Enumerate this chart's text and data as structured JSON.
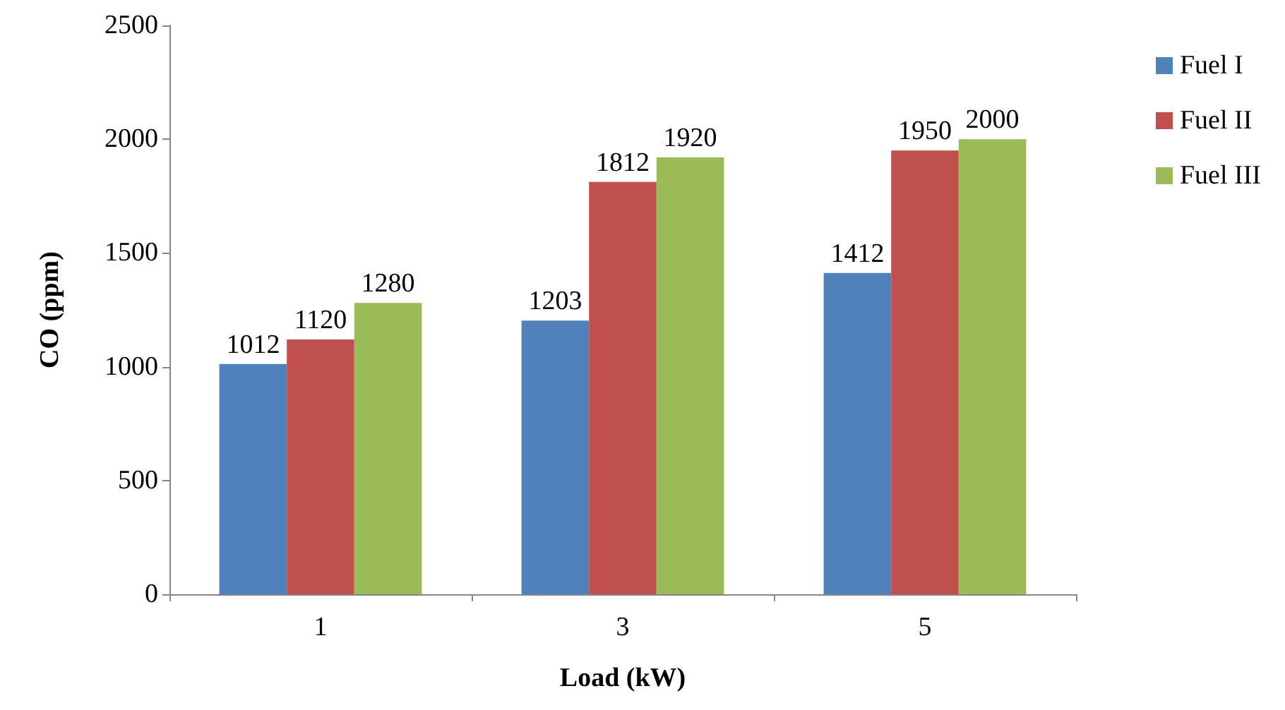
{
  "chart_data": {
    "type": "bar",
    "xlabel": "Load (kW)",
    "ylabel": "CO (ppm)",
    "categories": [
      "1",
      "3",
      "5"
    ],
    "series": [
      {
        "name": "Fuel I",
        "color": "#4f81bd",
        "values": [
          1012,
          1203,
          1412
        ]
      },
      {
        "name": "Fuel II",
        "color": "#c0504d",
        "values": [
          1120,
          1812,
          1950
        ]
      },
      {
        "name": "Fuel III",
        "color": "#9bbb59",
        "values": [
          1280,
          1920,
          2000
        ]
      }
    ],
    "ylim": [
      0,
      2500
    ],
    "yticks": [
      0,
      500,
      1000,
      1500,
      2000,
      2500
    ],
    "grid": false,
    "legend": "right",
    "data_labels": true
  }
}
